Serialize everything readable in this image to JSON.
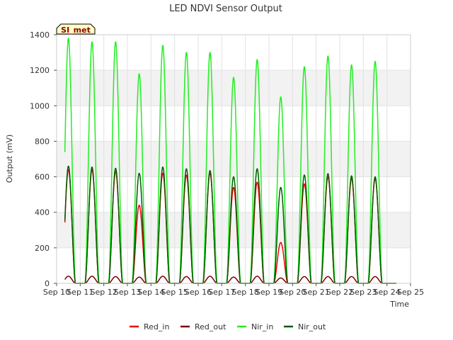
{
  "chart_data": {
    "type": "line",
    "title": "LED NDVI Sensor Output",
    "xlabel": "Time",
    "ylabel": "Output (mV)",
    "badge": "SI_met",
    "ylim": [
      0,
      1400
    ],
    "xlim": [
      0,
      15
    ],
    "yticks": [
      0,
      200,
      400,
      600,
      800,
      1000,
      1200,
      1400
    ],
    "xticks": [
      {
        "v": 0,
        "label": "Sep 10"
      },
      {
        "v": 1,
        "label": "Sep 11"
      },
      {
        "v": 2,
        "label": "Sep 12"
      },
      {
        "v": 3,
        "label": "Sep 13"
      },
      {
        "v": 4,
        "label": "Sep 14"
      },
      {
        "v": 5,
        "label": "Sep 15"
      },
      {
        "v": 6,
        "label": "Sep 16"
      },
      {
        "v": 7,
        "label": "Sep 17"
      },
      {
        "v": 8,
        "label": "Sep 18"
      },
      {
        "v": 9,
        "label": "Sep 19"
      },
      {
        "v": 10,
        "label": "Sep 20"
      },
      {
        "v": 11,
        "label": "Sep 21"
      },
      {
        "v": 12,
        "label": "Sep 22"
      },
      {
        "v": 13,
        "label": "Sep 23"
      },
      {
        "v": 14,
        "label": "Sep 24"
      },
      {
        "v": 15,
        "label": "Sep 25"
      }
    ],
    "x_range": [
      0.35,
      14.4
    ],
    "day_centers": [
      0.5,
      1.5,
      2.5,
      3.5,
      4.5,
      5.5,
      6.5,
      7.5,
      8.5,
      9.5,
      10.5,
      11.5,
      12.5,
      13.5
    ],
    "series": [
      {
        "name": "Red_in",
        "color": "#ee0000",
        "day_peaks": [
          640,
          640,
          630,
          440,
          620,
          610,
          620,
          540,
          570,
          230,
          560,
          600,
          590,
          590
        ]
      },
      {
        "name": "Red_out",
        "color": "#7a0000",
        "day_peaks": [
          40,
          40,
          38,
          35,
          40,
          38,
          40,
          35,
          40,
          30,
          38,
          38,
          38,
          38
        ]
      },
      {
        "name": "Nir_in",
        "color": "#22ee22",
        "day_peaks": [
          1380,
          1360,
          1360,
          1180,
          1340,
          1300,
          1300,
          1160,
          1260,
          1050,
          1220,
          1280,
          1230,
          1250
        ]
      },
      {
        "name": "Nir_out",
        "color": "#005c00",
        "day_peaks": [
          660,
          655,
          648,
          620,
          655,
          645,
          635,
          600,
          645,
          540,
          610,
          618,
          605,
          600
        ]
      }
    ],
    "legend_position": "bottom-center"
  }
}
